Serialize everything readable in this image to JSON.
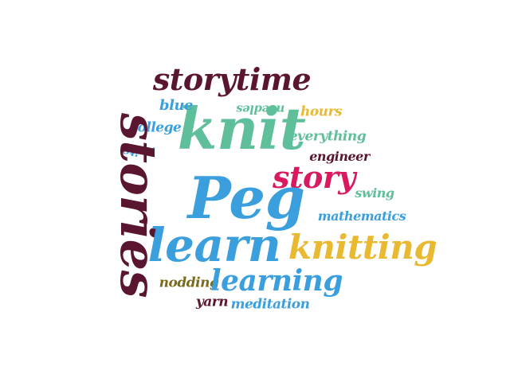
{
  "words": {
    "storytime": "storytime",
    "knit": "knit",
    "blue": "blue",
    "needles": "needles",
    "hours": "hours",
    "college": "college",
    "everything": "everything",
    "knits": "knits",
    "engineer": "engineer",
    "stories": "stories",
    "story": "story",
    "swing": "swing",
    "peg": "Peg",
    "mathematics": "mathematics",
    "learn": "learn",
    "knitting": "knitting",
    "nodding": "nodding",
    "learning": "learning",
    "yarn": "yarn",
    "meditation": "meditation"
  },
  "colors": {
    "maroon": "#5a1530",
    "teal": "#5fbf9a",
    "blue": "#3b9fde",
    "gold": "#e8b931",
    "magenta": "#d81b60",
    "olive": "#7a6a1a",
    "background": "#ffffff"
  }
}
